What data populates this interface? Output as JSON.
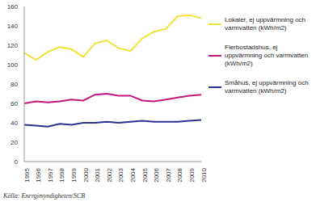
{
  "chart_data": {
    "type": "line",
    "categories": [
      "1995",
      "1996",
      "1997",
      "1998",
      "1999",
      "2000",
      "2001",
      "2002",
      "2003",
      "2004",
      "2005",
      "2006",
      "2007",
      "2008",
      "2009",
      "2010"
    ],
    "series": [
      {
        "name": "Småhus, ej uppvärmning och varmvatten (kWh/m2)",
        "color": "#2e3192",
        "values": [
          38,
          37,
          36,
          39,
          38,
          40,
          40,
          41,
          40,
          41,
          42,
          41,
          41,
          41,
          42,
          43
        ]
      },
      {
        "name": "Flerbostadshus, ej uppvärmning och varmvatten (kWh/m2)",
        "color": "#c2177d",
        "values": [
          60,
          62,
          61,
          62,
          64,
          63,
          69,
          70,
          68,
          68,
          63,
          62,
          64,
          66,
          68,
          69
        ]
      },
      {
        "name": "Lokaler, ej uppvärmning och varmvatten (kWh/m2)",
        "color": "#f2e23c",
        "values": [
          112,
          105,
          113,
          118,
          116,
          108,
          122,
          125,
          117,
          114,
          127,
          134,
          137,
          150,
          151,
          148
        ]
      }
    ],
    "ylim": [
      0,
      160
    ],
    "yticks": [
      0,
      20,
      40,
      60,
      80,
      100,
      120,
      140,
      160
    ],
    "grid": false,
    "legend": "right",
    "annotations": [
      "Källa: Energimyndigheten/SCB"
    ]
  }
}
